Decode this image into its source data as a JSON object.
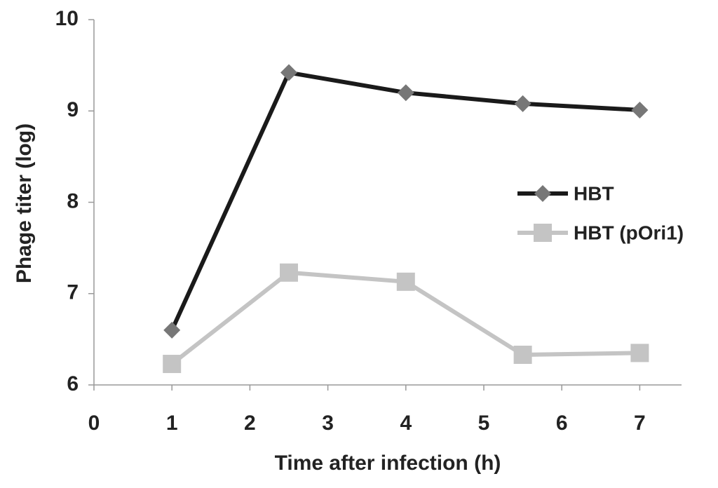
{
  "chart_data": {
    "type": "line",
    "xlabel": "Time after infection (h)",
    "ylabel": "Phage titer (log)",
    "xlim": [
      0,
      7.5
    ],
    "ylim": [
      6,
      10
    ],
    "xticks": [
      0,
      1,
      2,
      3,
      4,
      5,
      6,
      7
    ],
    "yticks": [
      6,
      7,
      8,
      9,
      10
    ],
    "legend": "right",
    "series": [
      {
        "name": "HBT",
        "color": "#1a1a1a",
        "marker": "diamond",
        "marker_color": "#777777",
        "x": [
          1,
          2.5,
          4,
          5.5,
          7
        ],
        "values": [
          6.6,
          9.42,
          9.2,
          9.08,
          9.01
        ]
      },
      {
        "name": "HBT (pOri1)",
        "color": "#c4c4c4",
        "marker": "square",
        "marker_color": "#c4c4c4",
        "x": [
          1,
          2.5,
          4,
          5.5,
          7
        ],
        "values": [
          6.23,
          7.23,
          7.13,
          6.33,
          6.35
        ]
      }
    ]
  }
}
